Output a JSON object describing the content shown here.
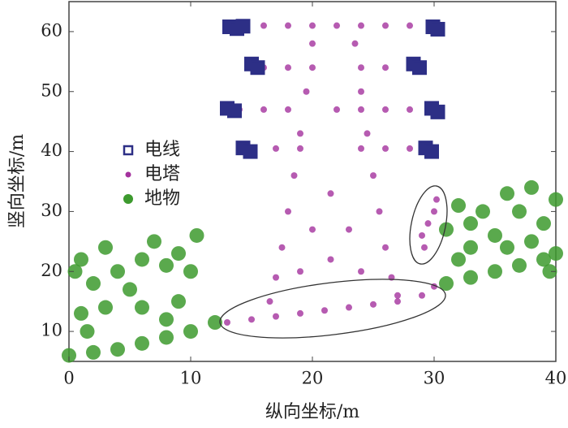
{
  "chart_data": {
    "type": "scatter",
    "xlabel": "纵向坐标/m",
    "ylabel": "竖向坐标/m",
    "xlim": [
      0,
      40
    ],
    "ylim": [
      5,
      65
    ],
    "xticks": [
      0,
      10,
      20,
      30,
      40
    ],
    "yticks": [
      10,
      20,
      30,
      40,
      50,
      60
    ],
    "grid": false,
    "legend": "left",
    "series": [
      {
        "name": "电线",
        "color": "#2d2f86",
        "marker": "square",
        "x": [
          13.2,
          13.8,
          14.3,
          29.9,
          30.3,
          15.0,
          15.5,
          28.3,
          28.8,
          13.0,
          13.6,
          29.8,
          30.3,
          14.3,
          14.9,
          29.3,
          29.8
        ],
        "values": [
          60.8,
          60.5,
          60.9,
          60.8,
          60.4,
          54.6,
          54.0,
          54.6,
          54.0,
          47.2,
          46.8,
          47.2,
          46.6,
          40.6,
          40.0,
          40.6,
          40.0
        ]
      },
      {
        "name": "电塔",
        "color": "#a4329e",
        "marker": "circle",
        "x": [
          14,
          16,
          18,
          20,
          22,
          24,
          26,
          28,
          16,
          18,
          20,
          24,
          26,
          28,
          14,
          16,
          18,
          22,
          24,
          26,
          28,
          30,
          15,
          17,
          19,
          24,
          26,
          28,
          20,
          19.5,
          19,
          18.5,
          18,
          17.5,
          17,
          16.5,
          23.5,
          24,
          24.5,
          25,
          25.5,
          26,
          26.5,
          27,
          21.5,
          20,
          23,
          21.5,
          19,
          24,
          13,
          15,
          17,
          19,
          21,
          23,
          25,
          27,
          29,
          30,
          29,
          29.5,
          30,
          29.2,
          30.2
        ],
        "values": [
          61,
          61,
          61,
          61,
          61,
          61,
          61,
          61,
          54,
          54,
          54,
          54,
          54,
          54,
          47,
          47,
          47,
          47,
          47,
          47,
          47,
          47,
          40.5,
          40.5,
          40.5,
          40.5,
          40.5,
          40.5,
          58,
          50,
          43,
          36,
          30,
          24,
          19,
          15,
          58,
          50,
          43,
          36,
          30,
          24,
          19,
          16,
          33,
          27,
          27,
          22,
          20,
          20,
          11.5,
          12,
          12.5,
          13,
          13.5,
          14,
          14.5,
          15,
          16,
          17.5,
          26,
          28,
          30,
          24,
          32
        ]
      },
      {
        "name": "地物",
        "color": "#3d9a2e",
        "marker": "circle",
        "x": [
          0,
          2,
          4,
          6,
          8,
          10,
          12,
          0.5,
          1,
          2,
          3,
          4,
          5,
          6,
          7,
          8,
          9,
          10,
          10.5,
          3,
          1,
          6,
          9,
          1.5,
          8,
          31,
          33,
          35,
          37,
          39,
          40,
          31,
          32,
          33,
          34,
          35,
          36,
          37,
          38,
          39,
          40,
          33,
          36,
          38,
          39.5,
          32
        ],
        "values": [
          6,
          6.5,
          7,
          8,
          9,
          10,
          11.5,
          20,
          22,
          18,
          24,
          20,
          17,
          22,
          25,
          21,
          23,
          20,
          26,
          14,
          13,
          14,
          15,
          10,
          12,
          18,
          19,
          20,
          21,
          22,
          23,
          27,
          31,
          28,
          30,
          26,
          33,
          30,
          34,
          28,
          32,
          24,
          24,
          25,
          20,
          22
        ]
      }
    ]
  }
}
